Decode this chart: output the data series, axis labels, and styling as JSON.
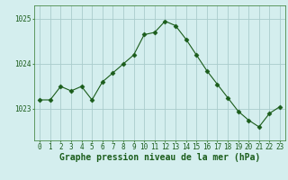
{
  "x": [
    0,
    1,
    2,
    3,
    4,
    5,
    6,
    7,
    8,
    9,
    10,
    11,
    12,
    13,
    14,
    15,
    16,
    17,
    18,
    19,
    20,
    21,
    22,
    23
  ],
  "y": [
    1023.2,
    1023.2,
    1023.5,
    1023.4,
    1023.5,
    1023.2,
    1023.6,
    1023.8,
    1024.0,
    1024.2,
    1024.65,
    1024.7,
    1024.95,
    1024.85,
    1024.55,
    1024.2,
    1023.85,
    1023.55,
    1023.25,
    1022.95,
    1022.75,
    1022.6,
    1022.9,
    1023.05
  ],
  "line_color": "#1a5c1a",
  "marker_color": "#1a5c1a",
  "bg_color": "#d4eeee",
  "grid_color": "#aacccc",
  "title": "Graphe pression niveau de la mer (hPa)",
  "title_color": "#1a5c1a",
  "yticks": [
    1023,
    1024,
    1025
  ],
  "ylim": [
    1022.3,
    1025.3
  ],
  "xlim": [
    -0.5,
    23.5
  ],
  "title_fontsize": 7.0,
  "tick_fontsize": 5.5,
  "border_color": "#4a8a4a"
}
